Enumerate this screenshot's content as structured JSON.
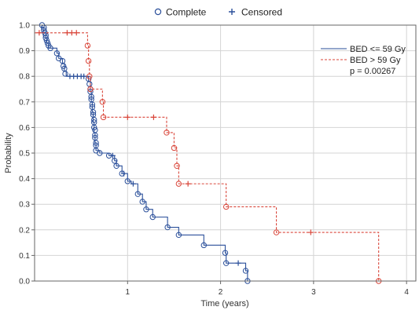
{
  "chart_data": {
    "type": "line",
    "subtype": "kaplan-meier",
    "xlabel": "Time (years)",
    "ylabel": "Probability",
    "xlim": [
      0,
      4.1
    ],
    "ylim": [
      0,
      1.0
    ],
    "xticks": [
      1,
      2,
      3,
      4
    ],
    "yticks": [
      0.0,
      0.1,
      0.2,
      0.3,
      0.4,
      0.5,
      0.6,
      0.7,
      0.8,
      0.9,
      1.0
    ],
    "grid": true,
    "marker_legend": {
      "position": "top-center",
      "complete_label": "Complete",
      "censored_label": "Censored"
    },
    "series_legend_position": "top-right",
    "annotation": "p = 0.00267",
    "series": [
      {
        "name": "BED <= 59 Gy",
        "color": "#2a4f9a",
        "line_style": "solid",
        "steps": [
          [
            0,
            1.0
          ],
          [
            0.08,
            0.99
          ],
          [
            0.1,
            0.97
          ],
          [
            0.12,
            0.95
          ],
          [
            0.13,
            0.93
          ],
          [
            0.15,
            0.91
          ],
          [
            0.24,
            0.89
          ],
          [
            0.26,
            0.87
          ],
          [
            0.3,
            0.85
          ],
          [
            0.32,
            0.82
          ],
          [
            0.34,
            0.8
          ],
          [
            0.58,
            0.78
          ],
          [
            0.6,
            0.74
          ],
          [
            0.61,
            0.7
          ],
          [
            0.62,
            0.66
          ],
          [
            0.63,
            0.62
          ],
          [
            0.64,
            0.58
          ],
          [
            0.65,
            0.54
          ],
          [
            0.66,
            0.51
          ],
          [
            0.7,
            0.5
          ],
          [
            0.8,
            0.49
          ],
          [
            0.86,
            0.47
          ],
          [
            0.88,
            0.45
          ],
          [
            0.94,
            0.42
          ],
          [
            1.0,
            0.39
          ],
          [
            1.04,
            0.38
          ],
          [
            1.11,
            0.34
          ],
          [
            1.16,
            0.31
          ],
          [
            1.2,
            0.28
          ],
          [
            1.27,
            0.25
          ],
          [
            1.43,
            0.21
          ],
          [
            1.55,
            0.18
          ],
          [
            1.82,
            0.14
          ],
          [
            2.05,
            0.11
          ],
          [
            2.06,
            0.07
          ],
          [
            2.27,
            0.04
          ],
          [
            2.29,
            0.0
          ]
        ],
        "complete_markers": [
          [
            0.08,
            1.0
          ],
          [
            0.1,
            0.99
          ],
          [
            0.1,
            0.98
          ],
          [
            0.11,
            0.97
          ],
          [
            0.12,
            0.96
          ],
          [
            0.12,
            0.95
          ],
          [
            0.13,
            0.94
          ],
          [
            0.14,
            0.93
          ],
          [
            0.15,
            0.92
          ],
          [
            0.17,
            0.91
          ],
          [
            0.24,
            0.89
          ],
          [
            0.26,
            0.87
          ],
          [
            0.3,
            0.86
          ],
          [
            0.31,
            0.84
          ],
          [
            0.32,
            0.83
          ],
          [
            0.33,
            0.81
          ],
          [
            0.58,
            0.79
          ],
          [
            0.59,
            0.77
          ],
          [
            0.6,
            0.75
          ],
          [
            0.6,
            0.74
          ],
          [
            0.61,
            0.72
          ],
          [
            0.61,
            0.71
          ],
          [
            0.62,
            0.69
          ],
          [
            0.62,
            0.68
          ],
          [
            0.63,
            0.66
          ],
          [
            0.63,
            0.65
          ],
          [
            0.64,
            0.63
          ],
          [
            0.64,
            0.62
          ],
          [
            0.64,
            0.6
          ],
          [
            0.65,
            0.59
          ],
          [
            0.65,
            0.57
          ],
          [
            0.65,
            0.56
          ],
          [
            0.66,
            0.54
          ],
          [
            0.66,
            0.53
          ],
          [
            0.66,
            0.51
          ],
          [
            0.7,
            0.5
          ],
          [
            0.8,
            0.49
          ],
          [
            0.86,
            0.47
          ],
          [
            0.88,
            0.45
          ],
          [
            0.94,
            0.42
          ],
          [
            1.0,
            0.39
          ],
          [
            1.11,
            0.34
          ],
          [
            1.16,
            0.31
          ],
          [
            1.2,
            0.28
          ],
          [
            1.27,
            0.25
          ],
          [
            1.43,
            0.21
          ],
          [
            1.55,
            0.18
          ],
          [
            1.82,
            0.14
          ],
          [
            2.05,
            0.11
          ],
          [
            2.06,
            0.07
          ],
          [
            2.27,
            0.04
          ],
          [
            2.29,
            0.0
          ]
        ],
        "censored_markers": [
          [
            0.38,
            0.8
          ],
          [
            0.42,
            0.8
          ],
          [
            0.46,
            0.8
          ],
          [
            0.5,
            0.8
          ],
          [
            0.53,
            0.8
          ],
          [
            0.84,
            0.49
          ],
          [
            0.96,
            0.42
          ],
          [
            1.06,
            0.38
          ],
          [
            2.19,
            0.07
          ]
        ]
      },
      {
        "name": "BED > 59 Gy",
        "color": "#d9463a",
        "line_style": "dashed",
        "steps": [
          [
            0,
            0.97
          ],
          [
            0.57,
            0.92
          ],
          [
            0.58,
            0.86
          ],
          [
            0.59,
            0.8
          ],
          [
            0.6,
            0.75
          ],
          [
            0.73,
            0.7
          ],
          [
            0.74,
            0.64
          ],
          [
            1.42,
            0.58
          ],
          [
            1.5,
            0.52
          ],
          [
            1.53,
            0.45
          ],
          [
            1.55,
            0.38
          ],
          [
            2.06,
            0.29
          ],
          [
            2.6,
            0.19
          ],
          [
            3.7,
            0.0
          ]
        ],
        "complete_markers": [
          [
            0.57,
            0.92
          ],
          [
            0.58,
            0.86
          ],
          [
            0.59,
            0.8
          ],
          [
            0.6,
            0.75
          ],
          [
            0.73,
            0.7
          ],
          [
            0.74,
            0.64
          ],
          [
            1.42,
            0.58
          ],
          [
            1.5,
            0.52
          ],
          [
            1.53,
            0.45
          ],
          [
            1.55,
            0.38
          ],
          [
            2.06,
            0.29
          ],
          [
            2.6,
            0.19
          ],
          [
            3.7,
            0.0
          ]
        ],
        "censored_markers": [
          [
            0.05,
            0.97
          ],
          [
            0.35,
            0.97
          ],
          [
            0.4,
            0.97
          ],
          [
            0.45,
            0.97
          ],
          [
            1.0,
            0.64
          ],
          [
            1.28,
            0.64
          ],
          [
            1.65,
            0.38
          ],
          [
            2.97,
            0.19
          ]
        ]
      }
    ]
  }
}
